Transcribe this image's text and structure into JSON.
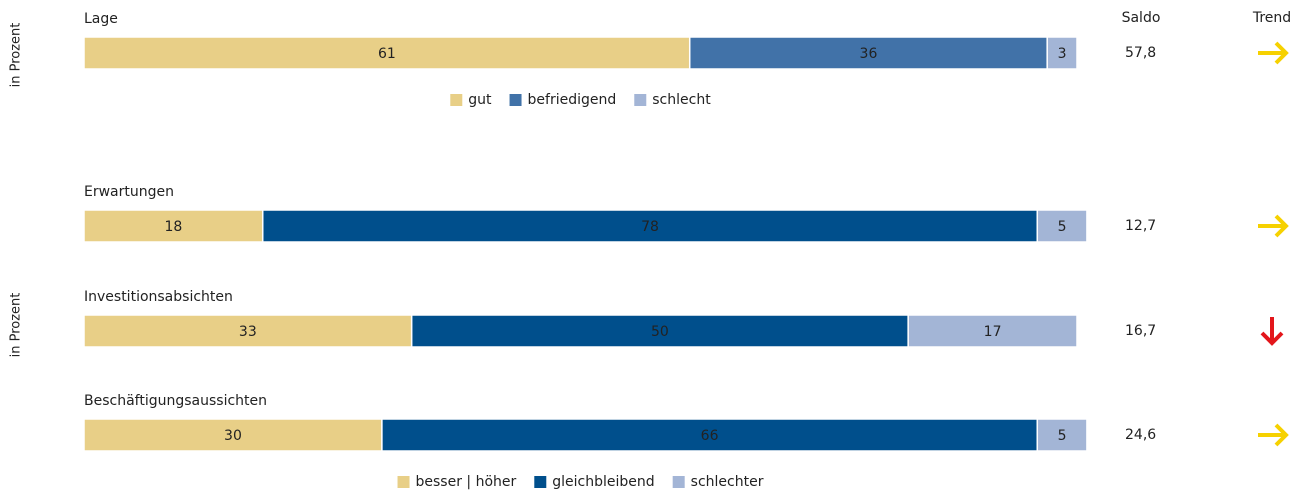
{
  "columns": {
    "saldo": "Saldo",
    "trend": "Trend"
  },
  "chart_data": [
    {
      "type": "bar",
      "orientation": "horizontal",
      "stacked": true,
      "y_label": "in Prozent",
      "categories": [
        "Lage"
      ],
      "xlim": [
        0,
        100
      ],
      "series": [
        {
          "name": "gut",
          "color": "#e8cf87",
          "values": [
            61
          ]
        },
        {
          "name": "befriedigend",
          "color": "#4172a8",
          "values": [
            36
          ]
        },
        {
          "name": "schlecht",
          "color": "#a3b5d6",
          "values": [
            3
          ]
        }
      ],
      "saldo": [
        57.8
      ],
      "saldo_labels": [
        "57,8"
      ],
      "trend": [
        "right"
      ]
    },
    {
      "type": "bar",
      "orientation": "horizontal",
      "stacked": true,
      "y_label": "in Prozent",
      "categories": [
        "Erwartungen",
        "Investitionsabsichten",
        "Beschäftigungsaussichten"
      ],
      "xlim": [
        0,
        100
      ],
      "series": [
        {
          "name": "besser | höher",
          "color": "#e8cf87",
          "values": [
            18,
            33,
            30
          ]
        },
        {
          "name": "gleichbleibend",
          "color": "#004f8c",
          "values": [
            78,
            50,
            66
          ]
        },
        {
          "name": "schlechter",
          "color": "#a3b5d6",
          "values": [
            5,
            17,
            5
          ]
        }
      ],
      "saldo": [
        12.7,
        16.7,
        24.6
      ],
      "saldo_labels": [
        "12,7",
        "16,7",
        "24,6"
      ],
      "trend": [
        "right",
        "down",
        "right"
      ]
    }
  ]
}
